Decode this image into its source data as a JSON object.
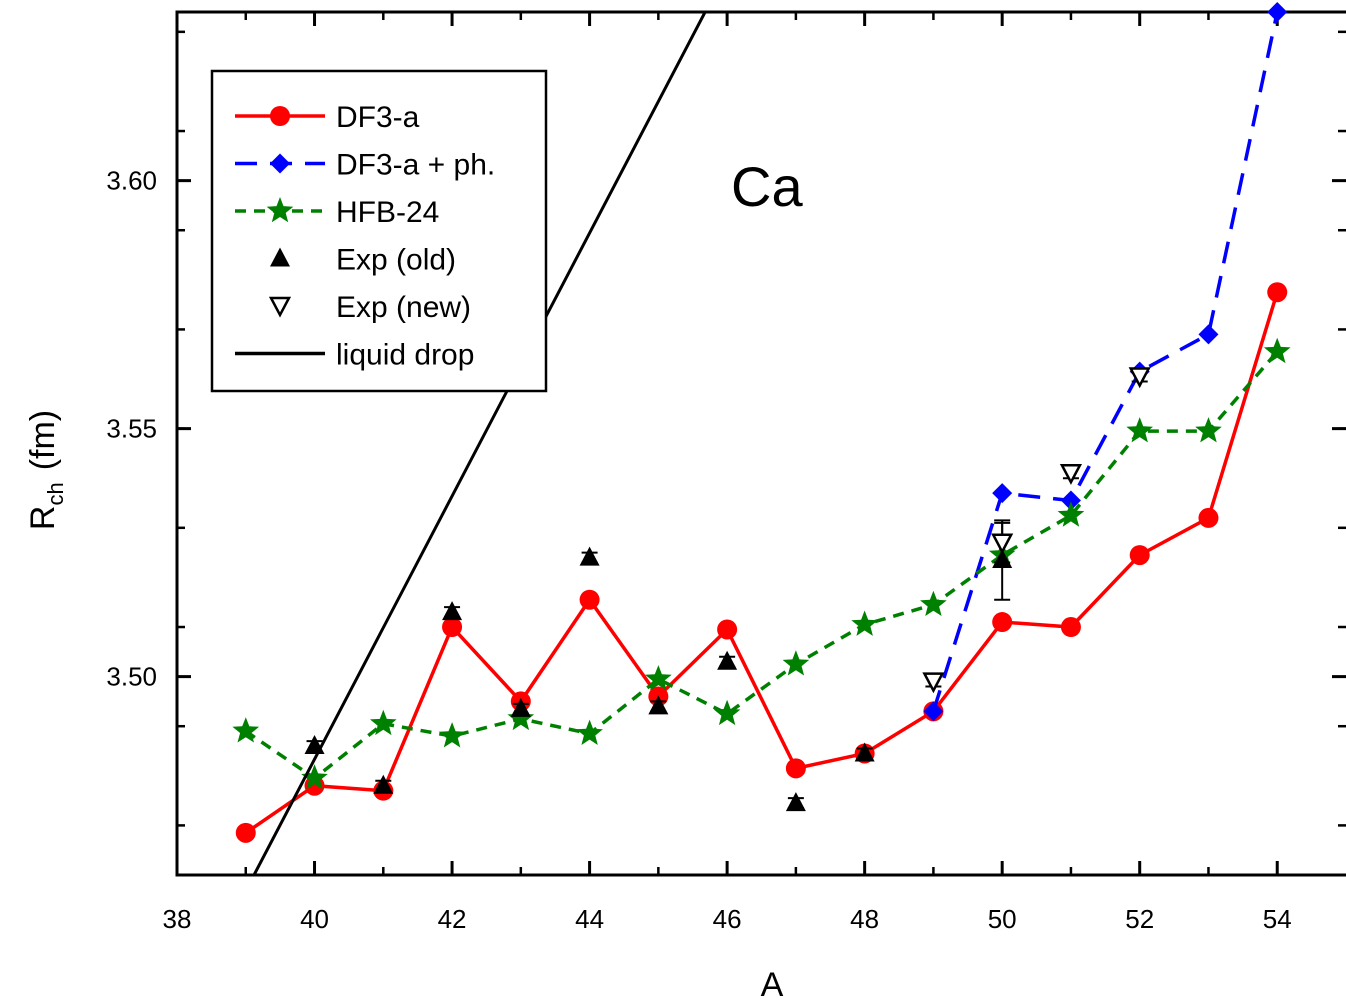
{
  "chart_data": {
    "type": "line",
    "title": "",
    "annotation": "Ca",
    "xlabel": "A",
    "ylabel_main": "R",
    "ylabel_sub": "ch",
    "ylabel_unit": "(fm)",
    "xlim": [
      38,
      55
    ],
    "ylim": [
      3.46,
      3.634
    ],
    "xticks": [
      38,
      40,
      42,
      44,
      46,
      48,
      50,
      52,
      54
    ],
    "xtick_labels": [
      "38",
      "40",
      "42",
      "44",
      "46",
      "48",
      "50",
      "52",
      "54"
    ],
    "yticks": [
      3.5,
      3.55,
      3.6
    ],
    "ytick_labels": [
      "3.50",
      "3.55",
      "3.60"
    ],
    "grid": false,
    "legend_position": "top-left",
    "series": [
      {
        "name": "DF3-a",
        "color": "#ff0000",
        "line": "solid",
        "marker": "circle",
        "x": [
          39,
          40,
          41,
          42,
          43,
          44,
          45,
          46,
          47,
          48,
          49,
          50,
          51,
          52,
          53,
          54
        ],
        "y": [
          3.4685,
          3.478,
          3.477,
          3.51,
          3.495,
          3.5155,
          3.496,
          3.5095,
          3.4815,
          3.4845,
          3.493,
          3.511,
          3.51,
          3.5245,
          3.532,
          3.5775
        ]
      },
      {
        "name": "DF3-a + ph.",
        "color": "#0000ff",
        "line": "dashed",
        "marker": "diamond",
        "x": [
          49,
          50,
          51,
          52,
          53,
          54
        ],
        "y": [
          3.493,
          3.537,
          3.5355,
          3.5615,
          3.569,
          3.634
        ]
      },
      {
        "name": "HFB-24",
        "color": "#008000",
        "line": "dotted",
        "marker": "star",
        "x": [
          39,
          40,
          41,
          42,
          43,
          44,
          45,
          46,
          47,
          48,
          49,
          50,
          51,
          52,
          53,
          54
        ],
        "y": [
          3.489,
          3.4795,
          3.4905,
          3.488,
          3.4915,
          3.4885,
          3.4995,
          3.4925,
          3.5025,
          3.5105,
          3.5145,
          3.5245,
          3.5325,
          3.5495,
          3.5495,
          3.5655
        ]
      },
      {
        "name": "Exp (old)",
        "color": "#000000",
        "line": "none",
        "marker": "triangle-up",
        "x": [
          40,
          41,
          42,
          43,
          44,
          45,
          46,
          47,
          48,
          50
        ],
        "y": [
          3.486,
          3.478,
          3.513,
          3.4935,
          3.524,
          3.494,
          3.503,
          3.4745,
          3.4845,
          3.5235
        ],
        "err": [
          0.001,
          0.001,
          0.001,
          0.001,
          0.001,
          0.001,
          0.001,
          0.001,
          0.001,
          0.008
        ]
      },
      {
        "name": "Exp (new)",
        "color": "#000000",
        "line": "none",
        "marker": "triangle-down",
        "x": [
          49,
          50,
          51,
          52
        ],
        "y": [
          3.499,
          3.527,
          3.541,
          3.5605
        ],
        "err": [
          0.001,
          0.004,
          0.001,
          0.001
        ]
      },
      {
        "name": "liquid drop",
        "color": "#000000",
        "line": "solid",
        "marker": "none",
        "x": [
          39.12,
          45.68
        ],
        "y": [
          3.46,
          3.634
        ]
      }
    ]
  }
}
